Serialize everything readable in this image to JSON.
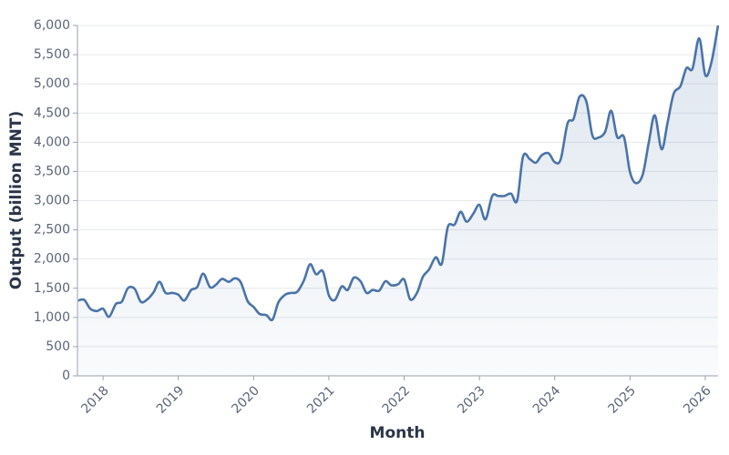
{
  "chart_data": {
    "type": "line",
    "xlabel": "Month",
    "ylabel": "Output (billion MNT)",
    "x": [
      2017.67,
      2017.75,
      2017.83,
      2017.92,
      2018.0,
      2018.08,
      2018.17,
      2018.25,
      2018.33,
      2018.42,
      2018.5,
      2018.58,
      2018.67,
      2018.75,
      2018.83,
      2018.92,
      2019.0,
      2019.08,
      2019.17,
      2019.25,
      2019.33,
      2019.42,
      2019.5,
      2019.58,
      2019.67,
      2019.75,
      2019.83,
      2019.92,
      2020.0,
      2020.08,
      2020.17,
      2020.25,
      2020.33,
      2020.42,
      2020.5,
      2020.58,
      2020.67,
      2020.75,
      2020.83,
      2020.92,
      2021.0,
      2021.08,
      2021.17,
      2021.25,
      2021.33,
      2021.42,
      2021.5,
      2021.58,
      2021.67,
      2021.75,
      2021.83,
      2021.92,
      2022.0,
      2022.08,
      2022.17,
      2022.25,
      2022.33,
      2022.42,
      2022.5,
      2022.58,
      2022.67,
      2022.75,
      2022.83,
      2022.92,
      2023.0,
      2023.08,
      2023.17,
      2023.25,
      2023.33,
      2023.42,
      2023.5,
      2023.58,
      2023.67,
      2023.75,
      2023.83,
      2023.92,
      2024.0,
      2024.08,
      2024.17,
      2024.25,
      2024.33,
      2024.42,
      2024.5,
      2024.58,
      2024.67,
      2024.75,
      2024.83,
      2024.92,
      2025.0,
      2025.08,
      2025.17,
      2025.25,
      2025.33,
      2025.42,
      2025.5,
      2025.58,
      2025.67,
      2025.75,
      2025.83,
      2025.92,
      2026.0,
      2026.08,
      2026.17
    ],
    "series": [
      {
        "name": "Output",
        "color": "#4a74a8",
        "values": [
          1290,
          1300,
          1150,
          1110,
          1150,
          1010,
          1230,
          1270,
          1500,
          1490,
          1270,
          1300,
          1430,
          1610,
          1420,
          1420,
          1390,
          1290,
          1470,
          1520,
          1750,
          1520,
          1560,
          1660,
          1610,
          1670,
          1600,
          1280,
          1180,
          1060,
          1040,
          960,
          1260,
          1390,
          1420,
          1440,
          1640,
          1910,
          1740,
          1790,
          1380,
          1300,
          1530,
          1470,
          1680,
          1620,
          1420,
          1470,
          1460,
          1620,
          1550,
          1570,
          1650,
          1310,
          1420,
          1700,
          1820,
          2030,
          1920,
          2550,
          2590,
          2810,
          2640,
          2780,
          2930,
          2680,
          3080,
          3080,
          3080,
          3120,
          3000,
          3760,
          3710,
          3650,
          3780,
          3810,
          3660,
          3710,
          4320,
          4400,
          4780,
          4700,
          4120,
          4080,
          4180,
          4540,
          4090,
          4090,
          3490,
          3300,
          3450,
          4000,
          4460,
          3880,
          4340,
          4830,
          4960,
          5270,
          5260,
          5780,
          5150,
          5360,
          6000
        ]
      }
    ],
    "xlim": [
      2017.66,
      2026.17
    ],
    "xticks": [
      2018,
      2019,
      2020,
      2021,
      2022,
      2023,
      2024,
      2025,
      2026
    ],
    "ylim": [
      0,
      6000
    ],
    "yticks": [
      0,
      500,
      {
        "value": 1000,
        "label": "1,000"
      },
      {
        "value": 1500,
        "label": "1,500"
      },
      {
        "value": 2000,
        "label": "2,000"
      },
      {
        "value": 2500,
        "label": "2,500"
      },
      {
        "value": 3000,
        "label": "3,000"
      },
      {
        "value": 3500,
        "label": "3,500"
      },
      {
        "value": 4000,
        "label": "4,000"
      },
      {
        "value": 4500,
        "label": "4,500"
      },
      {
        "value": 5000,
        "label": "5,000"
      },
      {
        "value": 5500,
        "label": "5,500"
      },
      {
        "value": 6000,
        "label": "6,000"
      }
    ],
    "grid": true
  }
}
